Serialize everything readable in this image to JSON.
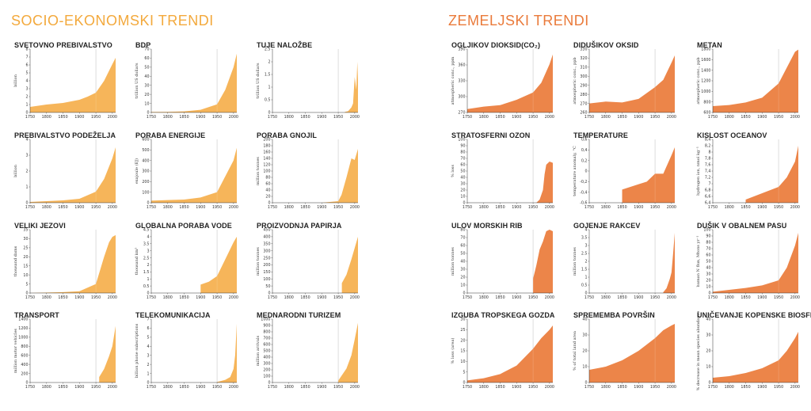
{
  "sections": [
    {
      "title": "SOCIO-EKONOMSKI TRENDI",
      "color": "#f3a93c"
    },
    {
      "title": "ZEMELJSKI TRENDI",
      "color": "#ea7a3a"
    }
  ],
  "chart_data": [
    {
      "id": "svetovno",
      "type": "area",
      "title": "SVETOVNO PREBIVALSTVO",
      "ylabel": "billion",
      "ylim": [
        0,
        8
      ],
      "yticks": [
        "0",
        "1",
        "2",
        "3",
        "4",
        "5",
        "6",
        "7",
        "8"
      ],
      "xticks": [
        "1750",
        "1800",
        "1850",
        "1900",
        "1950",
        "2000"
      ],
      "x": [
        1750,
        1800,
        1850,
        1900,
        1925,
        1950,
        1975,
        2000,
        2010
      ],
      "y": [
        0.7,
        1.0,
        1.2,
        1.6,
        2.0,
        2.5,
        4.0,
        6.1,
        6.9
      ],
      "color": "#f6b55a"
    },
    {
      "id": "bdp",
      "type": "area",
      "title": "BDP",
      "ylabel": "trillion US dollars",
      "ylim": [
        0,
        70
      ],
      "yticks": [
        "0",
        "10",
        "20",
        "30",
        "40",
        "50",
        "60",
        "70"
      ],
      "xticks": [
        "1750",
        "1800",
        "1850",
        "1900",
        "1950",
        "2000"
      ],
      "x": [
        1750,
        1800,
        1850,
        1900,
        1950,
        1975,
        1990,
        2000,
        2010
      ],
      "y": [
        0.5,
        0.7,
        1.2,
        3,
        9,
        25,
        40,
        50,
        65
      ],
      "color": "#f6b55a"
    },
    {
      "id": "nalozbe",
      "type": "area",
      "title": "TUJE NALOŽBE",
      "ylabel": "trillion US dollars",
      "ylim": [
        0,
        2.5
      ],
      "yticks": [
        "0",
        "0.5",
        "1",
        "1.5",
        "2",
        "2.5"
      ],
      "xticks": [
        "1750",
        "1800",
        "1850",
        "1900",
        "1950",
        "2000"
      ],
      "x": [
        1970,
        1980,
        1990,
        1995,
        2000,
        2005,
        2008,
        2010
      ],
      "y": [
        0.02,
        0.05,
        0.2,
        0.35,
        1.4,
        0.9,
        2.0,
        1.3
      ],
      "color": "#f6b55a"
    },
    {
      "id": "podezelje",
      "type": "area",
      "title": "PREBIVALSTVO PODEŽELJA",
      "ylabel": "billion",
      "ylim": [
        0,
        4
      ],
      "yticks": [
        "0",
        "1",
        "2",
        "3",
        "4"
      ],
      "xticks": [
        "1750",
        "1800",
        "1850",
        "1900",
        "1950",
        "2000"
      ],
      "x": [
        1750,
        1800,
        1850,
        1900,
        1950,
        1975,
        2000,
        2010
      ],
      "y": [
        0.05,
        0.1,
        0.15,
        0.25,
        0.7,
        1.5,
        2.8,
        3.5
      ],
      "color": "#f6b55a"
    },
    {
      "id": "energija",
      "type": "area",
      "title": "PORABA ENERGIJE",
      "ylabel": "exajoule (EJ)",
      "ylim": [
        0,
        600
      ],
      "yticks": [
        "0",
        "100",
        "200",
        "300",
        "400",
        "500",
        "600"
      ],
      "xticks": [
        "1750",
        "1800",
        "1850",
        "1900",
        "1950",
        "2000"
      ],
      "x": [
        1750,
        1800,
        1850,
        1900,
        1950,
        1975,
        2000,
        2010
      ],
      "y": [
        20,
        25,
        30,
        50,
        100,
        250,
        400,
        520
      ],
      "color": "#f6b55a"
    },
    {
      "id": "gnojil",
      "type": "area",
      "title": "PORABA GNOJIL",
      "ylabel": "million tonnes",
      "ylim": [
        0,
        200
      ],
      "yticks": [
        "0",
        "20",
        "40",
        "60",
        "80",
        "100",
        "120",
        "140",
        "160",
        "180",
        "200"
      ],
      "xticks": [
        "1750",
        "1800",
        "1850",
        "1900",
        "1950",
        "2000"
      ],
      "x": [
        1900,
        1950,
        1960,
        1975,
        1990,
        2000,
        2010
      ],
      "y": [
        0,
        5,
        25,
        80,
        140,
        135,
        170
      ],
      "color": "#f6b55a"
    },
    {
      "id": "jezovi",
      "type": "area",
      "title": "VELIKI JEZOVI",
      "ylabel": "thousand dams",
      "ylim": [
        0,
        35
      ],
      "yticks": [
        "0",
        "5",
        "10",
        "15",
        "20",
        "25",
        "30",
        "35"
      ],
      "xticks": [
        "1750",
        "1800",
        "1850",
        "1900",
        "1950",
        "2000"
      ],
      "x": [
        1750,
        1850,
        1900,
        1950,
        1975,
        1990,
        2000,
        2010
      ],
      "y": [
        0,
        0.5,
        1,
        5,
        20,
        28,
        31,
        32
      ],
      "color": "#f6b55a"
    },
    {
      "id": "voda",
      "type": "area",
      "title": "GLOBALNA PORABA VODE",
      "ylabel": "thousand km³",
      "ylim": [
        0,
        4.5
      ],
      "yticks": [
        "0",
        "0.5",
        "1",
        "1.5",
        "2",
        "2.5",
        "3",
        "3.5",
        "4",
        "4.5"
      ],
      "xticks": [
        "1750",
        "1800",
        "1850",
        "1900",
        "1950",
        "2000"
      ],
      "x": [
        1900,
        1925,
        1950,
        1975,
        2000,
        2010
      ],
      "y": [
        0.6,
        0.8,
        1.2,
        2.4,
        3.6,
        4.0
      ],
      "color": "#f6b55a"
    },
    {
      "id": "papir",
      "type": "area",
      "title": "PROIZVODNJA PAPIRJA",
      "ylabel": "million tonnes",
      "ylim": [
        0,
        450
      ],
      "yticks": [
        "0",
        "50",
        "100",
        "150",
        "200",
        "250",
        "300",
        "350",
        "400",
        "450"
      ],
      "xticks": [
        "1750",
        "1800",
        "1850",
        "1900",
        "1950",
        "2000"
      ],
      "x": [
        1961,
        1975,
        1990,
        2000,
        2010
      ],
      "y": [
        70,
        130,
        240,
        320,
        400
      ],
      "color": "#f6b55a"
    },
    {
      "id": "transport",
      "type": "area",
      "title": "TRANSPORT",
      "ylabel": "million motor vehicles",
      "ylim": [
        0,
        1400
      ],
      "yticks": [
        "0",
        "200",
        "400",
        "600",
        "800",
        "1000",
        "1200",
        "1400"
      ],
      "xticks": [
        "1750",
        "1800",
        "1850",
        "1900",
        "1950",
        "2000"
      ],
      "x": [
        1960,
        1975,
        1990,
        2000,
        2010
      ],
      "y": [
        120,
        300,
        580,
        800,
        1250
      ],
      "color": "#f6b55a"
    },
    {
      "id": "telekom",
      "type": "area",
      "title": "TELEKOMUNIKACIJA",
      "ylabel": "billion phone subscriptions",
      "ylim": [
        0,
        7
      ],
      "yticks": [
        "0",
        "1",
        "2",
        "3",
        "4",
        "5",
        "6",
        "7"
      ],
      "xticks": [
        "1750",
        "1800",
        "1850",
        "1900",
        "1950",
        "2000"
      ],
      "x": [
        1950,
        1975,
        1990,
        2000,
        2005,
        2010
      ],
      "y": [
        0.05,
        0.3,
        0.6,
        1.5,
        3.0,
        6.5
      ],
      "color": "#f6b55a"
    },
    {
      "id": "turizem",
      "type": "area",
      "title": "MEDNARODNI TURIZEM",
      "ylabel": "million arrivals",
      "ylim": [
        0,
        1000
      ],
      "yticks": [
        "0",
        "100",
        "200",
        "300",
        "400",
        "500",
        "600",
        "700",
        "800",
        "900",
        "1000"
      ],
      "xticks": [
        "1750",
        "1800",
        "1850",
        "1900",
        "1950",
        "2000"
      ],
      "x": [
        1950,
        1975,
        1990,
        2000,
        2010
      ],
      "y": [
        30,
        220,
        430,
        680,
        940
      ],
      "color": "#f6b55a"
    },
    {
      "id": "co2",
      "type": "area",
      "title": "OGLJIKOV DIOKSID(CO₂)",
      "ylabel": "atmospheric conc., ppm",
      "ylim": [
        270,
        400
      ],
      "yticks": [
        "270",
        "300",
        "330",
        "360",
        "390"
      ],
      "xticks": [
        "1750",
        "1800",
        "1850",
        "1900",
        "1950",
        "2000"
      ],
      "x": [
        1750,
        1800,
        1850,
        1900,
        1950,
        1975,
        2000,
        2010
      ],
      "y": [
        277,
        282,
        285,
        296,
        311,
        331,
        369,
        389
      ],
      "color": "#ec8549"
    },
    {
      "id": "n2o",
      "type": "area",
      "title": "DIDUŠIKOV OKSID",
      "ylabel": "atmospheric conc., ppb",
      "ylim": [
        260,
        330
      ],
      "yticks": [
        "260",
        "270",
        "280",
        "290",
        "300",
        "310",
        "320",
        "330"
      ],
      "xticks": [
        "1750",
        "1800",
        "1850",
        "1900",
        "1950",
        "2000"
      ],
      "x": [
        1750,
        1800,
        1850,
        1900,
        1950,
        1975,
        2000,
        2010
      ],
      "y": [
        270,
        272,
        271,
        275,
        288,
        296,
        315,
        323
      ],
      "color": "#ec8549"
    },
    {
      "id": "metan",
      "type": "area",
      "title": "METAN",
      "ylabel": "atmospheric conc., ppb",
      "ylim": [
        600,
        1800
      ],
      "yticks": [
        "600",
        "800",
        "1000",
        "1200",
        "1400",
        "1600",
        "1800"
      ],
      "xticks": [
        "1750",
        "1800",
        "1850",
        "1900",
        "1950",
        "2000"
      ],
      "x": [
        1750,
        1800,
        1850,
        1900,
        1950,
        1975,
        2000,
        2010
      ],
      "y": [
        720,
        740,
        790,
        880,
        1150,
        1450,
        1750,
        1790
      ],
      "color": "#ec8549"
    },
    {
      "id": "ozon",
      "type": "area",
      "title": "STRATOSFERNI OZON",
      "ylabel": "% loss",
      "ylim": [
        0,
        100
      ],
      "yticks": [
        "0",
        "10",
        "20",
        "30",
        "40",
        "50",
        "60",
        "70",
        "80",
        "90",
        "100"
      ],
      "xticks": [
        "1750",
        "1800",
        "1850",
        "1900",
        "1950",
        "2000"
      ],
      "x": [
        1960,
        1970,
        1980,
        1985,
        1990,
        2000,
        2010
      ],
      "y": [
        0,
        5,
        20,
        45,
        60,
        65,
        63
      ],
      "color": "#ec8549"
    },
    {
      "id": "temperature",
      "type": "area",
      "title": "TEMPERATURE",
      "ylabel": "temperature anomaly, °C",
      "ylim": [
        -0.6,
        0.6
      ],
      "yticks": [
        "-0,6",
        "-0,4",
        "-0,2",
        "0",
        "0,2",
        "0,4",
        "0,6"
      ],
      "xticks": [
        "1750",
        "1800",
        "1850",
        "1900",
        "1950",
        "2000"
      ],
      "x": [
        1850,
        1875,
        1900,
        1925,
        1950,
        1975,
        2000,
        2010
      ],
      "y": [
        -0.35,
        -0.3,
        -0.25,
        -0.2,
        -0.05,
        -0.05,
        0.3,
        0.45
      ],
      "color": "#ec8549"
    },
    {
      "id": "kislost",
      "type": "area",
      "title": "KISLOST OCEANOV",
      "ylabel": "hydrogen ion, nmol kg⁻¹",
      "ylim": [
        6.4,
        8.4
      ],
      "yticks": [
        "6,4",
        "6,6",
        "6,8",
        "7",
        "7,2",
        "7,4",
        "7,6",
        "7,8",
        "8",
        "8,2",
        "8,4"
      ],
      "xticks": [
        "1750",
        "1800",
        "1850",
        "1900",
        "1950",
        "2000"
      ],
      "x": [
        1850,
        1900,
        1950,
        1975,
        2000,
        2010
      ],
      "y": [
        6.5,
        6.7,
        6.9,
        7.2,
        7.7,
        8.2
      ],
      "color": "#ec8549"
    },
    {
      "id": "ribe",
      "type": "area",
      "title": "ULOV MORSKIH RIB",
      "ylabel": "million tonnes",
      "ylim": [
        0,
        80
      ],
      "yticks": [
        "0",
        "10",
        "20",
        "30",
        "40",
        "50",
        "60",
        "70",
        "80"
      ],
      "xticks": [
        "1750",
        "1800",
        "1850",
        "1900",
        "1950",
        "2000"
      ],
      "x": [
        1950,
        1960,
        1970,
        1980,
        1990,
        2000,
        2010
      ],
      "y": [
        18,
        35,
        55,
        65,
        78,
        80,
        78
      ],
      "color": "#ec8549"
    },
    {
      "id": "rakci",
      "type": "area",
      "title": "GOJENJE RAKCEV",
      "ylabel": "million tonnes",
      "ylim": [
        0,
        4
      ],
      "yticks": [
        "0",
        "0.5",
        "1",
        "1.5",
        "2",
        "2.5",
        "3",
        "3.5",
        "4"
      ],
      "xticks": [
        "1750",
        "1800",
        "1850",
        "1900",
        "1950",
        "2000"
      ],
      "x": [
        1975,
        1985,
        1995,
        2000,
        2005,
        2010
      ],
      "y": [
        0.05,
        0.3,
        0.9,
        1.3,
        2.5,
        3.8
      ],
      "color": "#ec8549"
    },
    {
      "id": "dusik",
      "type": "area",
      "title": "DUŠIK V OBALNEM PASU",
      "ylabel": "human N flux, Mtons yr⁻¹",
      "ylim": [
        0,
        100
      ],
      "yticks": [
        "0",
        "10",
        "20",
        "30",
        "40",
        "50",
        "60",
        "70",
        "80",
        "90",
        "100"
      ],
      "xticks": [
        "1750",
        "1800",
        "1850",
        "1900",
        "1950",
        "2000"
      ],
      "x": [
        1750,
        1800,
        1850,
        1900,
        1950,
        1975,
        2000,
        2010
      ],
      "y": [
        2,
        5,
        8,
        12,
        20,
        40,
        75,
        95
      ],
      "color": "#ec8549"
    },
    {
      "id": "gozd",
      "type": "area",
      "title": "IZGUBA TROPSKEGA GOZDA",
      "ylabel": "% loss (area)",
      "ylim": [
        0,
        30
      ],
      "yticks": [
        "0",
        "5",
        "10",
        "15",
        "20",
        "25",
        "30"
      ],
      "xticks": [
        "1750",
        "1800",
        "1850",
        "1900",
        "1950",
        "2000"
      ],
      "x": [
        1750,
        1800,
        1850,
        1900,
        1950,
        1975,
        2000,
        2010
      ],
      "y": [
        1,
        2,
        4,
        8,
        16,
        21,
        25,
        27
      ],
      "color": "#ec8549"
    },
    {
      "id": "povrsin",
      "type": "area",
      "title": "SPREMEMBA POVRŠIN",
      "ylabel": "% of total land area",
      "ylim": [
        0,
        40
      ],
      "yticks": [
        "0",
        "10",
        "20",
        "30",
        "40"
      ],
      "xticks": [
        "1750",
        "1800",
        "1850",
        "1900",
        "1950",
        "2000"
      ],
      "x": [
        1750,
        1800,
        1850,
        1900,
        1950,
        1975,
        2000,
        2010
      ],
      "y": [
        8,
        10,
        14,
        20,
        28,
        33,
        36,
        37
      ],
      "color": "#ec8549"
    },
    {
      "id": "biosfera",
      "type": "area",
      "title": "UNIČEVANJE KOPENSKE BIOSFERE",
      "ylabel": "% decrease in mean species abundance",
      "ylim": [
        0,
        40
      ],
      "yticks": [
        "0",
        "10",
        "20",
        "30",
        "40"
      ],
      "xticks": [
        "1750",
        "1800",
        "1850",
        "1900",
        "1950",
        "2000"
      ],
      "x": [
        1750,
        1800,
        1850,
        1900,
        1950,
        1975,
        2000,
        2010
      ],
      "y": [
        3,
        4,
        6,
        9,
        14,
        20,
        28,
        32
      ],
      "color": "#ec8549"
    }
  ]
}
